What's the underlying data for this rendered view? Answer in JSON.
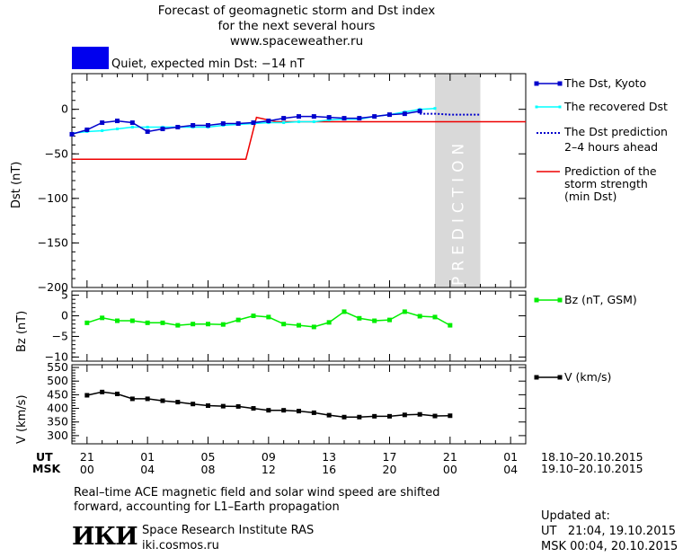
{
  "header": {
    "title_line1": "Forecast of geomagnetic storm and Dst index",
    "title_line2": "for the next several hours",
    "title_line3": "www.spaceweather.ru",
    "status_text": "Quiet, expected min Dst: −14 nT",
    "status_color": "#0000ee"
  },
  "prediction_label": "PREDICTION",
  "legend": {
    "dst_kyoto": "The Dst, Kyoto",
    "dst_recovered": "The recovered Dst",
    "dst_prediction_1": "The Dst prediction",
    "dst_prediction_2": "2–4 hours ahead",
    "storm_1": "Prediction of the",
    "storm_2": "storm strength",
    "storm_3": "(min Dst)",
    "bz": "Bz (nT, GSM)",
    "v": "V (km/s)"
  },
  "axes": {
    "dst_ylabel": "Dst (nT)",
    "bz_ylabel": "Bz (nT)",
    "v_ylabel": "V (km/s)"
  },
  "time_axis": {
    "ut_label": "UT",
    "msk_label": "MSK",
    "ut_ticks": [
      "21",
      "01",
      "05",
      "09",
      "13",
      "17",
      "21",
      "01"
    ],
    "msk_ticks": [
      "00",
      "04",
      "08",
      "12",
      "16",
      "20",
      "00",
      "04"
    ],
    "ut_range": "18.10–20.10.2015",
    "msk_range": "19.10–20.10.2015"
  },
  "footer": {
    "note_line1": "Real–time ACE magnetic field and solar wind speed are shifted",
    "note_line2": "forward, accounting for L1–Earth propagation",
    "logo_text": "ИКИ",
    "institute": "Space Research Institute RAS",
    "site": "iki.cosmos.ru",
    "updated_label": "Updated at:",
    "updated_ut": "UT   21:04, 19.10.2015",
    "updated_msk": "MSK 00:04, 20.10.2015"
  },
  "colors": {
    "dst_kyoto": "#0000cc",
    "dst_recovered": "#00ffff",
    "dst_prediction": "#0000cc",
    "storm": "#ee0000",
    "bz": "#00ee00",
    "v": "#000000",
    "prediction_band": "#d9d9d9"
  },
  "chart_data": [
    {
      "type": "line",
      "x_unit": "hours since 21 UT 18.10.2015",
      "xlim": [
        -1,
        29
      ],
      "ylim": [
        -200,
        40
      ],
      "yticks": [
        0,
        -50,
        -100,
        -150,
        -200
      ],
      "prediction_band": [
        23,
        26
      ],
      "series": [
        {
          "name": "The Dst, Kyoto",
          "x": [
            -1,
            0,
            1,
            2,
            3,
            4,
            5,
            6,
            7,
            8,
            9,
            10,
            11,
            12,
            13,
            14,
            15,
            16,
            17,
            18,
            19,
            20,
            21,
            22
          ],
          "y": [
            -28,
            -23,
            -15,
            -13,
            -15,
            -25,
            -22,
            -20,
            -18,
            -18,
            -16,
            -16,
            -15,
            -13,
            -10,
            -8,
            -8,
            -9,
            -10,
            -10,
            -8,
            -6,
            -5,
            -2
          ]
        },
        {
          "name": "The recovered Dst",
          "x": [
            -1,
            0,
            1,
            2,
            3,
            4,
            5,
            6,
            7,
            8,
            9,
            10,
            11,
            12,
            13,
            14,
            15,
            16,
            17,
            18,
            19,
            20,
            21,
            22,
            23
          ],
          "y": [
            -27,
            -25,
            -24,
            -22,
            -20,
            -20,
            -20,
            -20,
            -20,
            -20,
            -18,
            -17,
            -16,
            -15,
            -15,
            -14,
            -14,
            -12,
            -11,
            -11,
            -8,
            -6,
            -3,
            0,
            1
          ]
        },
        {
          "name": "The Dst prediction 2–4 hours ahead",
          "x": [
            22,
            23,
            24,
            25,
            26
          ],
          "y": [
            -5,
            -5,
            -6,
            -6,
            -6
          ]
        },
        {
          "name": "Prediction of the storm strength (min Dst)",
          "x": [
            -1,
            10.5,
            11.2,
            12.5,
            29
          ],
          "y": [
            -56,
            -56,
            -9,
            -14,
            -14
          ]
        }
      ]
    },
    {
      "type": "line",
      "name": "Bz (nT, GSM)",
      "xlim": [
        -1,
        29
      ],
      "ylim": [
        -11,
        6
      ],
      "yticks": [
        5,
        0,
        -5,
        -10
      ],
      "x": [
        0,
        1,
        2,
        3,
        4,
        5,
        6,
        7,
        8,
        9,
        10,
        11,
        12,
        13,
        14,
        15,
        16,
        17,
        18,
        19,
        20,
        21,
        22,
        23,
        24
      ],
      "y": [
        -1.7,
        -0.5,
        -1.2,
        -1.2,
        -1.7,
        -1.7,
        -2.3,
        -2.0,
        -2.0,
        -2.1,
        -1.0,
        0.0,
        -0.3,
        -2.0,
        -2.3,
        -2.7,
        -1.6,
        1.0,
        -0.6,
        -1.2,
        -1.0,
        1.0,
        -0.1,
        -0.3,
        -2.3
      ]
    },
    {
      "type": "line",
      "name": "V (km/s)",
      "xlim": [
        -1,
        29
      ],
      "ylim": [
        270,
        560
      ],
      "yticks": [
        550,
        500,
        450,
        400,
        350,
        300
      ],
      "x": [
        0,
        1,
        2,
        3,
        4,
        5,
        6,
        7,
        8,
        9,
        10,
        11,
        12,
        13,
        14,
        15,
        16,
        17,
        18,
        19,
        20,
        21,
        22,
        23,
        24
      ],
      "y": [
        448,
        460,
        453,
        435,
        435,
        428,
        423,
        416,
        410,
        408,
        407,
        400,
        393,
        393,
        390,
        384,
        375,
        368,
        368,
        371,
        371,
        376,
        378,
        372,
        373
      ]
    }
  ]
}
